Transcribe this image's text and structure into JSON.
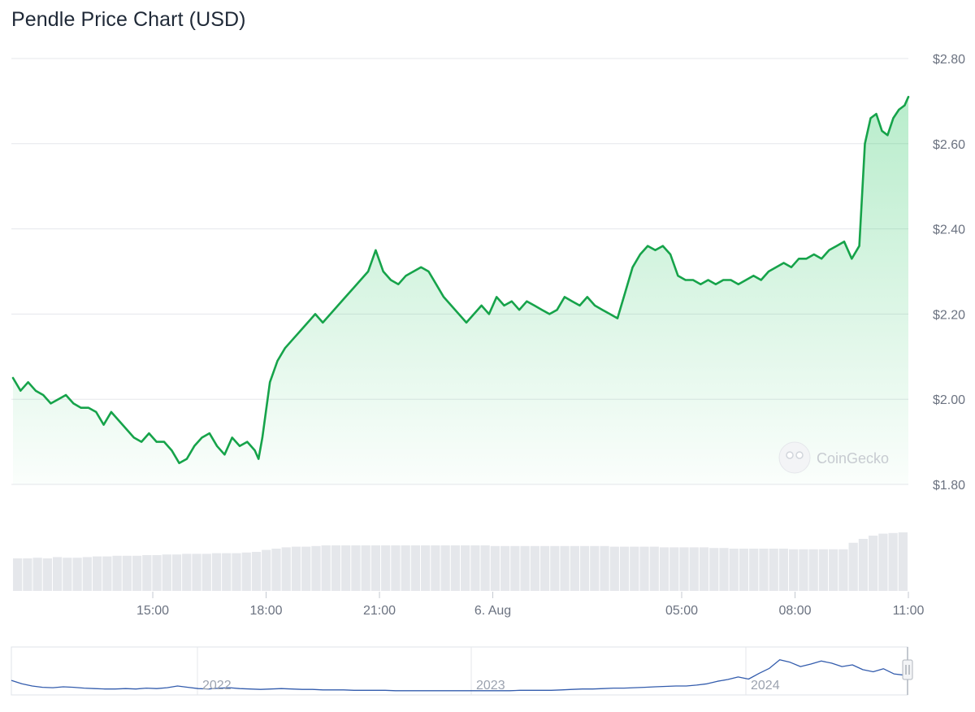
{
  "title": "Pendle Price Chart (USD)",
  "watermark": "CoinGecko",
  "colors": {
    "line": "#16a34a",
    "area": "#22c55e",
    "volume": "#e5e7eb",
    "grid": "#e5e7eb",
    "tick_text": "#6b7280",
    "navigator_line": "#335cad"
  },
  "chart_data": {
    "type": "area",
    "title": "Pendle Price Chart (USD)",
    "xlabel": "",
    "ylabel": "",
    "y_ticks": [
      "$1.80",
      "$2.00",
      "$2.20",
      "$2.40",
      "$2.60",
      "$2.80"
    ],
    "y_tick_values": [
      1.8,
      2.0,
      2.2,
      2.4,
      2.6,
      2.8
    ],
    "ylim": [
      1.8,
      2.8
    ],
    "x_ticks": [
      "15:00",
      "18:00",
      "21:00",
      "6. Aug",
      "05:00",
      "08:00",
      "11:00"
    ],
    "x_tick_hours": [
      15,
      18,
      21,
      24,
      29,
      32,
      35
    ],
    "xlim_hours": [
      11.3,
      35
    ],
    "grid": true,
    "legend": "none",
    "series": [
      {
        "points": [
          [
            11.3,
            2.05
          ],
          [
            11.5,
            2.02
          ],
          [
            11.7,
            2.04
          ],
          [
            11.9,
            2.02
          ],
          [
            12.1,
            2.01
          ],
          [
            12.3,
            1.99
          ],
          [
            12.5,
            2.0
          ],
          [
            12.7,
            2.01
          ],
          [
            12.9,
            1.99
          ],
          [
            13.1,
            1.98
          ],
          [
            13.3,
            1.98
          ],
          [
            13.5,
            1.97
          ],
          [
            13.7,
            1.94
          ],
          [
            13.9,
            1.97
          ],
          [
            14.1,
            1.95
          ],
          [
            14.3,
            1.93
          ],
          [
            14.5,
            1.91
          ],
          [
            14.7,
            1.9
          ],
          [
            14.9,
            1.92
          ],
          [
            15.1,
            1.9
          ],
          [
            15.3,
            1.9
          ],
          [
            15.5,
            1.88
          ],
          [
            15.7,
            1.85
          ],
          [
            15.9,
            1.86
          ],
          [
            16.1,
            1.89
          ],
          [
            16.3,
            1.91
          ],
          [
            16.5,
            1.92
          ],
          [
            16.7,
            1.89
          ],
          [
            16.9,
            1.87
          ],
          [
            17.1,
            1.91
          ],
          [
            17.3,
            1.89
          ],
          [
            17.5,
            1.9
          ],
          [
            17.7,
            1.88
          ],
          [
            17.8,
            1.86
          ],
          [
            17.9,
            1.91
          ],
          [
            18.1,
            2.04
          ],
          [
            18.3,
            2.09
          ],
          [
            18.5,
            2.12
          ],
          [
            18.7,
            2.14
          ],
          [
            18.9,
            2.16
          ],
          [
            19.1,
            2.18
          ],
          [
            19.3,
            2.2
          ],
          [
            19.5,
            2.18
          ],
          [
            19.7,
            2.2
          ],
          [
            19.9,
            2.22
          ],
          [
            20.1,
            2.24
          ],
          [
            20.3,
            2.26
          ],
          [
            20.5,
            2.28
          ],
          [
            20.7,
            2.3
          ],
          [
            20.9,
            2.35
          ],
          [
            21.1,
            2.3
          ],
          [
            21.3,
            2.28
          ],
          [
            21.5,
            2.27
          ],
          [
            21.7,
            2.29
          ],
          [
            21.9,
            2.3
          ],
          [
            22.1,
            2.31
          ],
          [
            22.3,
            2.3
          ],
          [
            22.5,
            2.27
          ],
          [
            22.7,
            2.24
          ],
          [
            22.9,
            2.22
          ],
          [
            23.1,
            2.2
          ],
          [
            23.3,
            2.18
          ],
          [
            23.5,
            2.2
          ],
          [
            23.7,
            2.22
          ],
          [
            23.9,
            2.2
          ],
          [
            24.1,
            2.24
          ],
          [
            24.3,
            2.22
          ],
          [
            24.5,
            2.23
          ],
          [
            24.7,
            2.21
          ],
          [
            24.9,
            2.23
          ],
          [
            25.1,
            2.22
          ],
          [
            25.3,
            2.21
          ],
          [
            25.5,
            2.2
          ],
          [
            25.7,
            2.21
          ],
          [
            25.9,
            2.24
          ],
          [
            26.1,
            2.23
          ],
          [
            26.3,
            2.22
          ],
          [
            26.5,
            2.24
          ],
          [
            26.7,
            2.22
          ],
          [
            26.9,
            2.21
          ],
          [
            27.1,
            2.2
          ],
          [
            27.3,
            2.19
          ],
          [
            27.5,
            2.25
          ],
          [
            27.7,
            2.31
          ],
          [
            27.9,
            2.34
          ],
          [
            28.1,
            2.36
          ],
          [
            28.3,
            2.35
          ],
          [
            28.5,
            2.36
          ],
          [
            28.7,
            2.34
          ],
          [
            28.9,
            2.29
          ],
          [
            29.1,
            2.28
          ],
          [
            29.3,
            2.28
          ],
          [
            29.5,
            2.27
          ],
          [
            29.7,
            2.28
          ],
          [
            29.9,
            2.27
          ],
          [
            30.1,
            2.28
          ],
          [
            30.3,
            2.28
          ],
          [
            30.5,
            2.27
          ],
          [
            30.7,
            2.28
          ],
          [
            30.9,
            2.29
          ],
          [
            31.1,
            2.28
          ],
          [
            31.3,
            2.3
          ],
          [
            31.5,
            2.31
          ],
          [
            31.7,
            2.32
          ],
          [
            31.9,
            2.31
          ],
          [
            32.1,
            2.33
          ],
          [
            32.3,
            2.33
          ],
          [
            32.5,
            2.34
          ],
          [
            32.7,
            2.33
          ],
          [
            32.9,
            2.35
          ],
          [
            33.1,
            2.36
          ],
          [
            33.3,
            2.37
          ],
          [
            33.5,
            2.33
          ],
          [
            33.7,
            2.36
          ],
          [
            33.85,
            2.6
          ],
          [
            34.0,
            2.66
          ],
          [
            34.15,
            2.67
          ],
          [
            34.3,
            2.63
          ],
          [
            34.45,
            2.62
          ],
          [
            34.6,
            2.66
          ],
          [
            34.75,
            2.68
          ],
          [
            34.9,
            2.69
          ],
          [
            35.0,
            2.71
          ]
        ]
      }
    ],
    "volume": [
      0.5,
      0.5,
      0.51,
      0.5,
      0.52,
      0.51,
      0.51,
      0.52,
      0.53,
      0.53,
      0.54,
      0.54,
      0.54,
      0.55,
      0.55,
      0.56,
      0.56,
      0.57,
      0.57,
      0.57,
      0.58,
      0.58,
      0.58,
      0.59,
      0.6,
      0.63,
      0.65,
      0.67,
      0.68,
      0.68,
      0.69,
      0.7,
      0.7,
      0.7,
      0.7,
      0.7,
      0.7,
      0.7,
      0.7,
      0.7,
      0.7,
      0.7,
      0.7,
      0.7,
      0.7,
      0.7,
      0.7,
      0.7,
      0.69,
      0.69,
      0.69,
      0.69,
      0.69,
      0.69,
      0.69,
      0.69,
      0.69,
      0.69,
      0.69,
      0.69,
      0.68,
      0.68,
      0.68,
      0.68,
      0.68,
      0.67,
      0.67,
      0.67,
      0.67,
      0.67,
      0.66,
      0.66,
      0.65,
      0.65,
      0.65,
      0.65,
      0.65,
      0.65,
      0.64,
      0.64,
      0.64,
      0.64,
      0.64,
      0.64,
      0.74,
      0.8,
      0.85,
      0.88,
      0.89,
      0.9
    ],
    "navigator": {
      "x_ticks": [
        "2022",
        "2023",
        "2024"
      ],
      "values": [
        0.3,
        0.22,
        0.17,
        0.14,
        0.13,
        0.15,
        0.14,
        0.12,
        0.11,
        0.1,
        0.1,
        0.11,
        0.1,
        0.12,
        0.11,
        0.13,
        0.17,
        0.14,
        0.11,
        0.1,
        0.12,
        0.13,
        0.11,
        0.1,
        0.09,
        0.1,
        0.11,
        0.1,
        0.09,
        0.09,
        0.08,
        0.08,
        0.08,
        0.07,
        0.07,
        0.07,
        0.07,
        0.06,
        0.06,
        0.06,
        0.06,
        0.06,
        0.06,
        0.06,
        0.06,
        0.06,
        0.06,
        0.06,
        0.06,
        0.07,
        0.07,
        0.07,
        0.07,
        0.08,
        0.09,
        0.1,
        0.1,
        0.11,
        0.12,
        0.12,
        0.13,
        0.14,
        0.15,
        0.16,
        0.17,
        0.17,
        0.19,
        0.22,
        0.28,
        0.32,
        0.38,
        0.33,
        0.46,
        0.58,
        0.78,
        0.72,
        0.62,
        0.68,
        0.75,
        0.7,
        0.62,
        0.66,
        0.55,
        0.5,
        0.57,
        0.45,
        0.42
      ]
    }
  }
}
